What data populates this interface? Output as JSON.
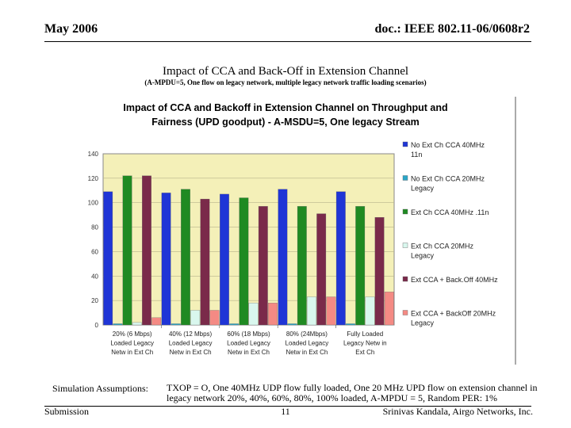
{
  "header": {
    "date": "May 2006",
    "doc": "doc.: IEEE 802.11-06/0608r2"
  },
  "slide": {
    "title": "Impact of CCA and Back-Off in Extension Channel",
    "subtitle": "(A-MPDU=5, One flow on legacy network, multiple legacy network traffic loading scenarios)"
  },
  "chart_data": {
    "type": "bar",
    "title": "Impact of CCA and Backoff in Extension Channel on Throughput and Fairness (UPD goodput) - A-MSDU=5, One legacy Stream",
    "title_lines": [
      "Impact of CCA and Backoff in Extension Channel on Throughput and",
      "Fairness (UPD goodput) - A-MSDU=5, One legacy Stream"
    ],
    "ylim": [
      0,
      140
    ],
    "yticks": [
      "0",
      "20",
      "40",
      "60",
      "80",
      "100",
      "120",
      "140"
    ],
    "categories": [
      [
        "20% (6 Mbps)",
        "Loaded Legacy",
        "Netw in Ext Ch"
      ],
      [
        "40% (12 Mbps)",
        "Loaded Legacy",
        "Netw in Ext Ch"
      ],
      [
        "60% (18 Mbps)",
        "Loaded Legacy",
        "Netw in Ext Ch"
      ],
      [
        "80% (24Mbps)",
        "Loaded Legacy",
        "Netw in Ext Ch"
      ],
      [
        "Fully Loaded",
        "Legacy Netw in",
        "Ext Ch"
      ]
    ],
    "legend_position": "right",
    "series": [
      {
        "name": "No Ext Ch CCA 40MHz 11n",
        "legend_lines": [
          "No Ext Ch CCA 40MHz",
          "11n"
        ],
        "color": "#1f35d6",
        "values": [
          109,
          108,
          107,
          111,
          109
        ]
      },
      {
        "name": "No Ext Ch CCA 20MHz Legacy",
        "legend_lines": [
          "No Ext Ch CCA 20MHz",
          "Legacy"
        ],
        "color": "#2aa6c8",
        "values": [
          1,
          1,
          1,
          1,
          1
        ]
      },
      {
        "name": "Ext Ch CCA 40MHz .11n",
        "legend_lines": [
          "Ext Ch CCA 40MHz .11n"
        ],
        "color": "#1f8a22",
        "values": [
          122,
          111,
          104,
          97,
          97
        ]
      },
      {
        "name": "Ext Ch CCA 20MHz Legacy",
        "legend_lines": [
          "Ext Ch CCA 20MHz",
          "Legacy"
        ],
        "color": "#d9f7ee",
        "values": [
          2,
          12,
          18,
          23,
          23
        ]
      },
      {
        "name": "Ext CCA + Back.Off 40MHz",
        "legend_lines": [
          "Ext CCA + Back.Off 40MHz"
        ],
        "color": "#7a2a4a",
        "values": [
          122,
          103,
          97,
          91,
          88
        ]
      },
      {
        "name": "Ext CCA + BackOff 20MHz Legacy",
        "legend_lines": [
          "Ext CCA + BackOff 20MHz",
          "Legacy"
        ],
        "color": "#f48a84",
        "values": [
          6,
          12,
          18,
          23,
          27
        ]
      }
    ]
  },
  "assumptions": {
    "label": "Simulation Assumptions:",
    "text": "TXOP = O, One 40MHz UDP flow fully loaded, One 20 MHz UPD flow on extension channel in legacy network 20%, 40%, 60%, 80%, 100% loaded, A-MPDU = 5, Random PER: 1%"
  },
  "footer": {
    "left": "Submission",
    "page": "11",
    "right": "Srinivas Kandala, Airgo Networks, Inc."
  },
  "colors": {
    "plot_bg": "#f4f0b8",
    "axis": "#000000"
  }
}
